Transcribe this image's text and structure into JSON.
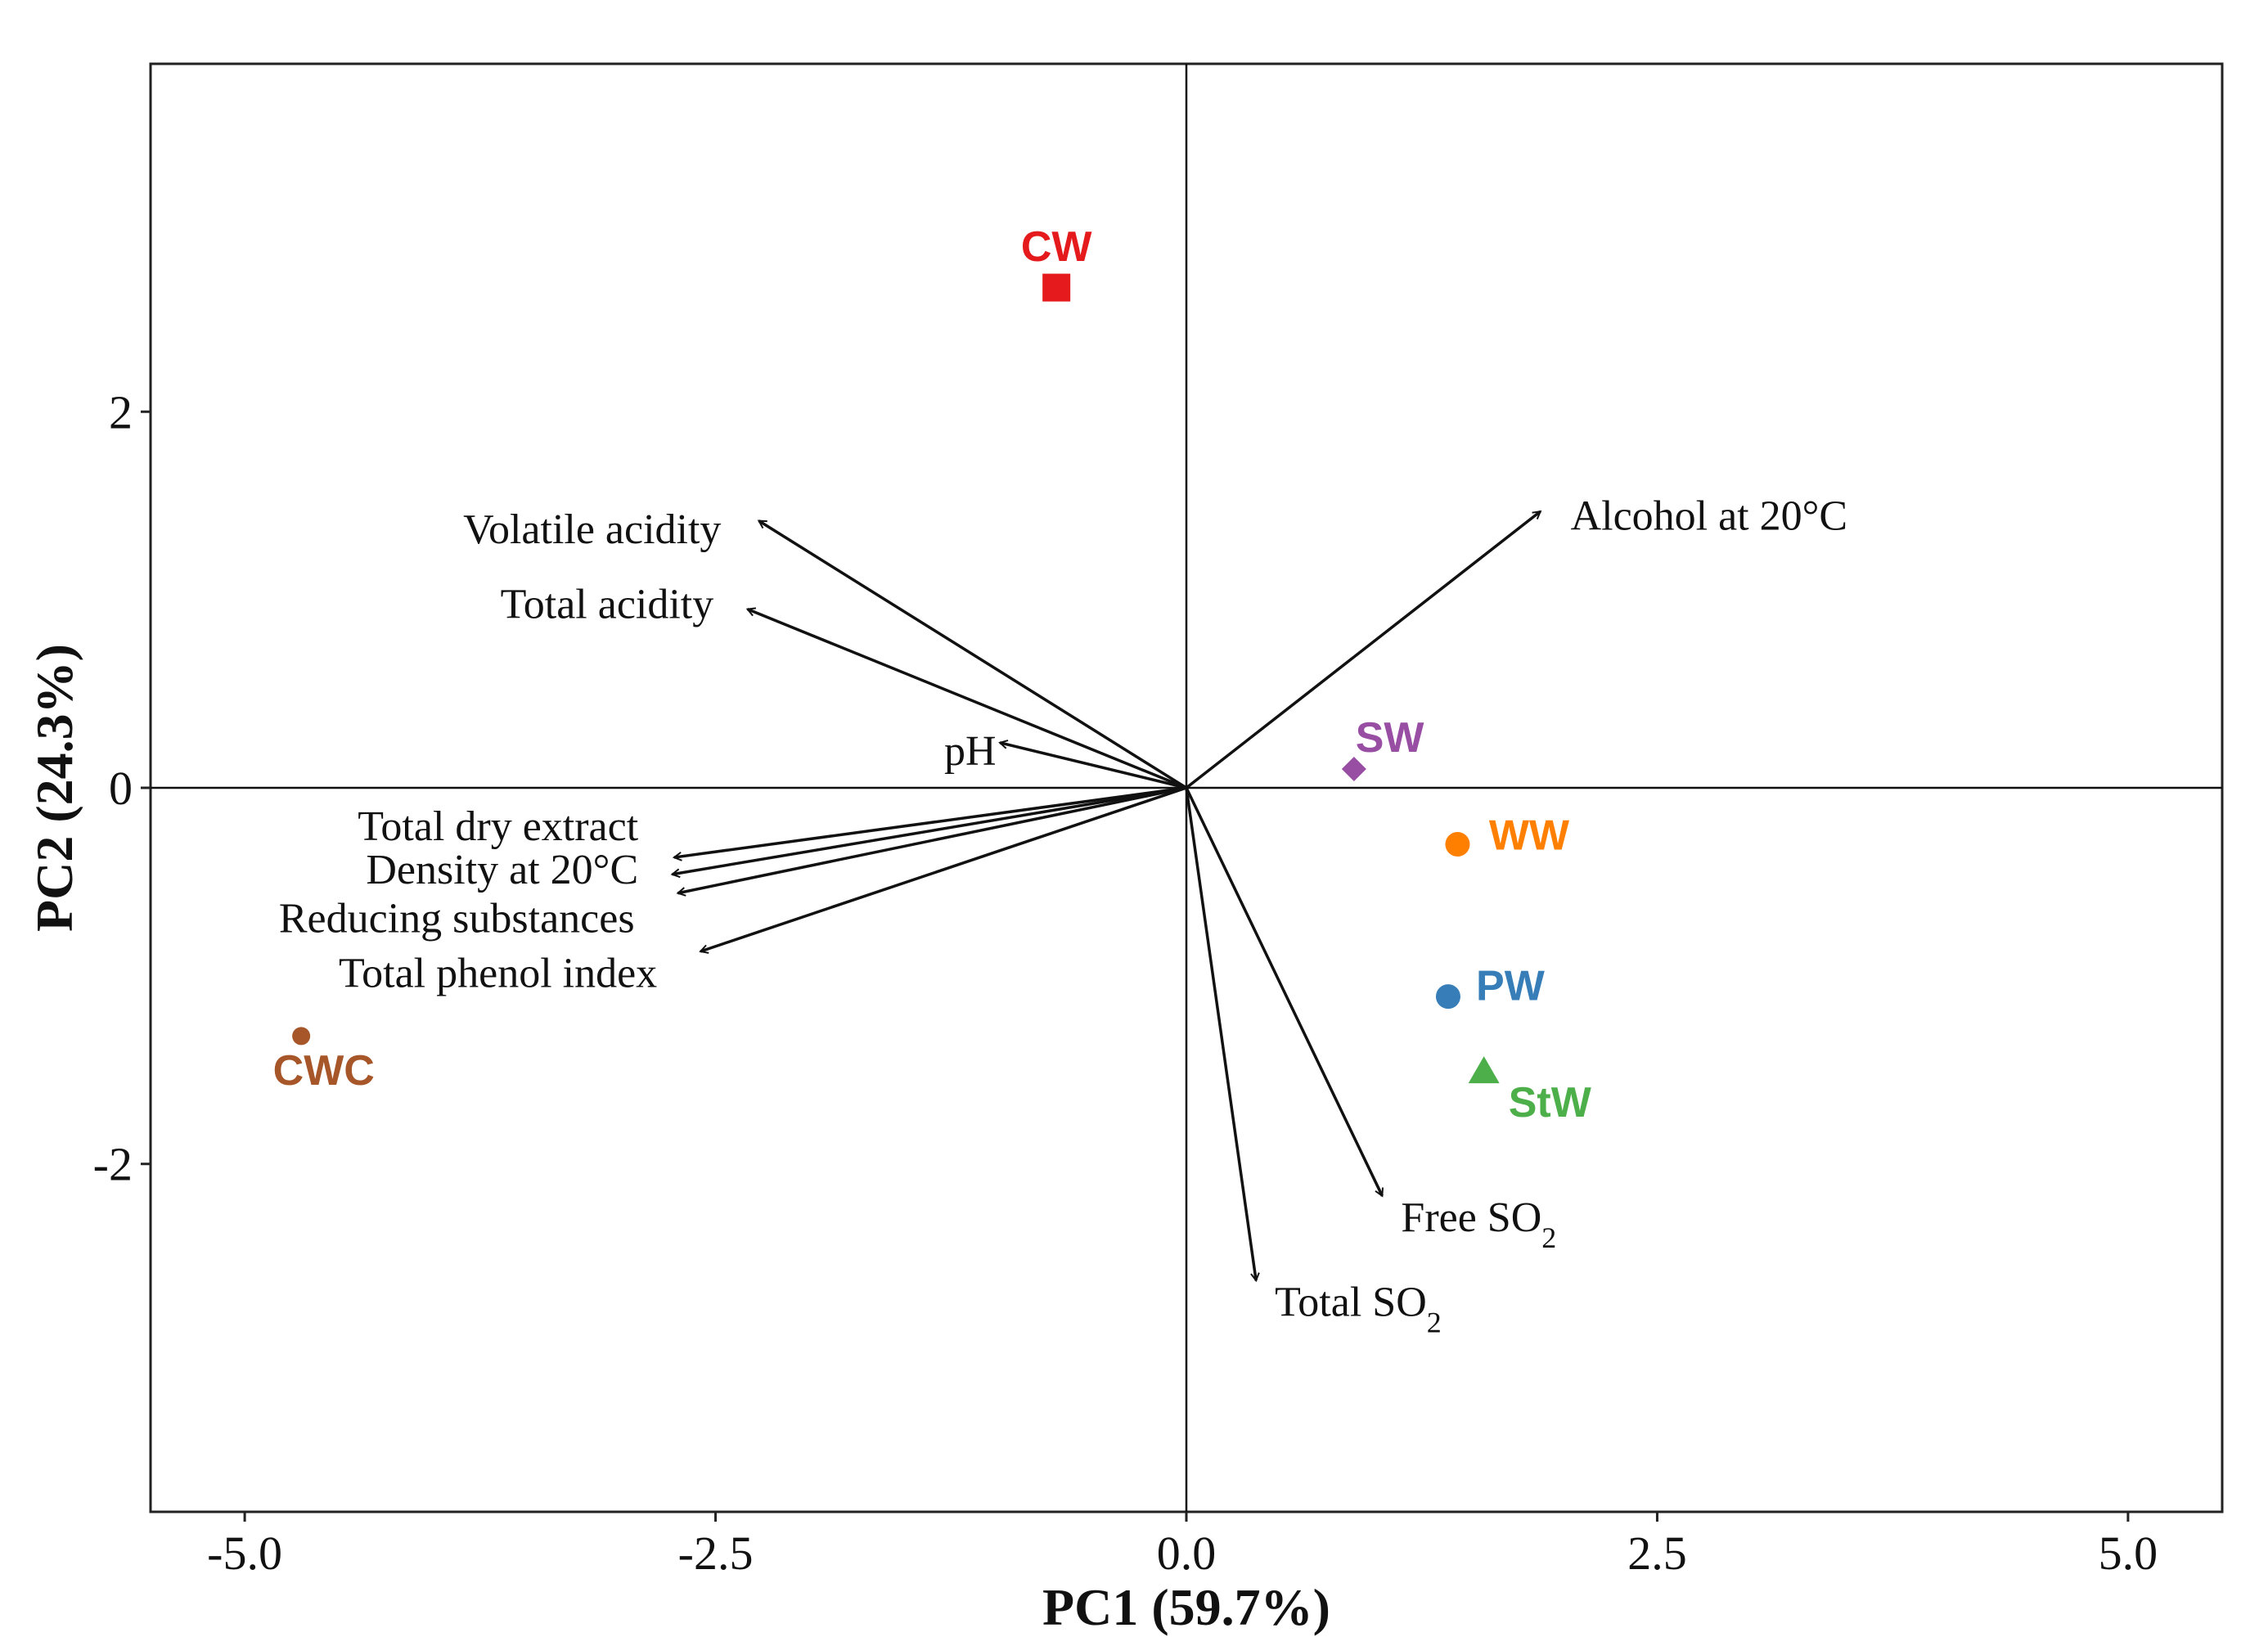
{
  "chart_data": {
    "type": "scatter",
    "subtype": "PCA biplot",
    "title": "",
    "xlabel": "PC1 (59.7%)",
    "ylabel": "PC2 (24.3%)",
    "xlim": [
      -5.5,
      5.5
    ],
    "ylim": [
      -3.85,
      3.85
    ],
    "xticks": [
      -5.0,
      -2.5,
      0.0,
      2.5,
      5.0
    ],
    "xtick_labels": [
      "-5.0",
      "-2.5",
      "0.0",
      "2.5",
      "5.0"
    ],
    "yticks": [
      -2,
      0,
      2
    ],
    "ytick_labels": [
      "-2",
      "0",
      "2"
    ],
    "points": [
      {
        "name": "CW",
        "x": -0.69,
        "y": 2.66,
        "color": "#e41a1c",
        "shape": "square",
        "label_dx": 0.0,
        "label_dy": 0.22
      },
      {
        "name": "SW",
        "x": 0.89,
        "y": 0.1,
        "color": "#984ea3",
        "shape": "diamond",
        "label_dx": 0.19,
        "label_dy": 0.17
      },
      {
        "name": "WW",
        "x": 1.44,
        "y": -0.3,
        "color": "#ff7f00",
        "shape": "circle",
        "label_dx": 0.38,
        "label_dy": 0.05
      },
      {
        "name": "PW",
        "x": 1.39,
        "y": -1.11,
        "color": "#377eb8",
        "shape": "circle",
        "label_dx": 0.33,
        "label_dy": 0.06
      },
      {
        "name": "StW",
        "x": 1.58,
        "y": -1.51,
        "color": "#4daf4a",
        "shape": "triangle",
        "label_dx": 0.35,
        "label_dy": -0.16
      },
      {
        "name": "CWC",
        "x": -4.7,
        "y": -1.32,
        "color": "#a65628",
        "shape": "circle_small",
        "label_dx": 0.12,
        "label_dy": -0.18
      }
    ],
    "loadings": [
      {
        "name": "Volatile acidity",
        "x": -2.27,
        "y": 1.42,
        "anchor": "end",
        "label_x": -2.47,
        "label_y": 1.38
      },
      {
        "name": "Total acidity",
        "x": -2.33,
        "y": 0.95,
        "anchor": "end",
        "label_x": -2.51,
        "label_y": 0.98
      },
      {
        "name": "pH",
        "x": -0.99,
        "y": 0.24,
        "anchor": "end",
        "label_x": -1.01,
        "label_y": 0.2
      },
      {
        "name": "Alcohol at 20°C",
        "x": 1.88,
        "y": 1.47,
        "anchor": "start",
        "label_x": 2.04,
        "label_y": 1.45
      },
      {
        "name": "Total dry extract",
        "x": -2.72,
        "y": -0.37,
        "anchor": "end",
        "label_x": -2.91,
        "label_y": -0.2
      },
      {
        "name": "Density at 20°C",
        "x": -2.73,
        "y": -0.46,
        "anchor": "end",
        "label_x": -2.91,
        "label_y": -0.43
      },
      {
        "name": "Reducing substances",
        "x": -2.7,
        "y": -0.56,
        "anchor": "end",
        "label_x": -2.93,
        "label_y": -0.69
      },
      {
        "name": "Total phenol index",
        "x": -2.58,
        "y": -0.87,
        "anchor": "end",
        "label_x": -2.81,
        "label_y": -0.98
      },
      {
        "name": "Free SO",
        "sub": "2",
        "x": 1.04,
        "y": -2.17,
        "anchor": "start",
        "label_x": 1.14,
        "label_y": -2.28
      },
      {
        "name": "Total SO",
        "sub": "2",
        "x": 0.37,
        "y": -2.62,
        "anchor": "start",
        "label_x": 0.47,
        "label_y": -2.73
      }
    ]
  }
}
